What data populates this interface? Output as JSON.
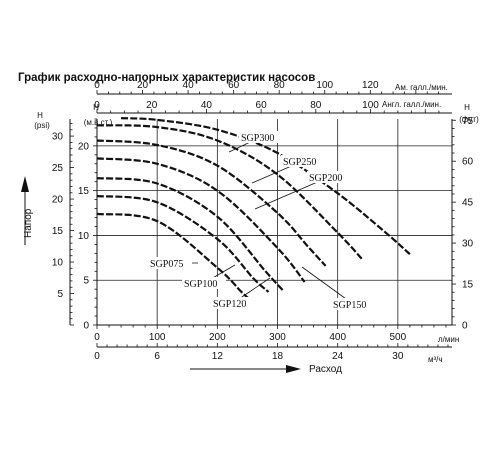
{
  "chart_data": {
    "type": "line",
    "title": "График расходно-напорных характеристик насосов",
    "axes": {
      "top_us_gpm": {
        "unit": "Ам. галл./мин.",
        "ticks": [
          "0",
          "20",
          "40",
          "60",
          "80",
          "100",
          "120"
        ],
        "values": [
          0,
          20,
          40,
          60,
          80,
          100,
          120
        ]
      },
      "top_uk_gpm": {
        "unit": "Англ. галл./мин.",
        "ticks": [
          "0",
          "20",
          "40",
          "60",
          "80",
          "100"
        ],
        "values": [
          0,
          20,
          40,
          60,
          80,
          100
        ]
      },
      "bottom_lpm": {
        "unit": "л/мин",
        "ticks": [
          "0",
          "100",
          "200",
          "300",
          "400",
          "500"
        ],
        "values": [
          0,
          100,
          200,
          300,
          400,
          500
        ]
      },
      "bottom_m3h": {
        "unit": "м³/ч",
        "ticks": [
          "0",
          "6",
          "12",
          "18",
          "24",
          "30"
        ],
        "values": [
          0,
          6,
          12,
          18,
          24,
          30
        ]
      },
      "left_psi": {
        "label": "H",
        "unit": "(psi)",
        "ticks": [
          "5",
          "10",
          "15",
          "20",
          "25",
          "30"
        ],
        "values": [
          5,
          10,
          15,
          20,
          25,
          30
        ]
      },
      "left_m": {
        "label": "H",
        "unit": "(м.в.ст.)",
        "ticks": [
          "0",
          "5",
          "10",
          "15",
          "20"
        ],
        "values": [
          0,
          5,
          10,
          15,
          20
        ]
      },
      "right_ft": {
        "label": "H",
        "unit": "(фут)",
        "ticks": [
          "0",
          "15",
          "30",
          "45",
          "60",
          "75"
        ],
        "values": [
          0,
          15,
          30,
          45,
          60,
          75
        ]
      },
      "y_title": "Напор",
      "x_title": "Расход",
      "xlim_lpm": [
        0,
        590
      ],
      "ylim_m": [
        0,
        23
      ]
    },
    "series": [
      {
        "name": "SGP300",
        "x": [
          40,
          100,
          200,
          300,
          400,
          480,
          520
        ],
        "y": [
          23.1,
          22.9,
          21.8,
          19.2,
          14.7,
          10.3,
          7.9
        ]
      },
      {
        "name": "SGP250",
        "x": [
          0,
          100,
          200,
          300,
          400,
          440
        ],
        "y": [
          22.3,
          22.1,
          20.6,
          16.8,
          10.3,
          7.4
        ]
      },
      {
        "name": "SGP200",
        "x": [
          0,
          100,
          200,
          300,
          350,
          380
        ],
        "y": [
          20.6,
          20.1,
          17.8,
          12.5,
          8.8,
          6.6
        ]
      },
      {
        "name": "SGP150",
        "x": [
          0,
          100,
          200,
          300,
          345
        ],
        "y": [
          18.6,
          18.0,
          15.0,
          8.6,
          4.8
        ]
      },
      {
        "name": "SGP120",
        "x": [
          0,
          100,
          200,
          280,
          310
        ],
        "y": [
          16.4,
          15.8,
          12.1,
          6.0,
          3.8
        ]
      },
      {
        "name": "SGP100",
        "x": [
          0,
          100,
          200,
          260,
          285
        ],
        "y": [
          14.4,
          13.7,
          9.6,
          5.2,
          3.7
        ]
      },
      {
        "name": "SGP075",
        "x": [
          0,
          100,
          200,
          240,
          255
        ],
        "y": [
          12.4,
          11.6,
          6.4,
          3.7,
          2.8
        ]
      }
    ],
    "grid": true
  }
}
